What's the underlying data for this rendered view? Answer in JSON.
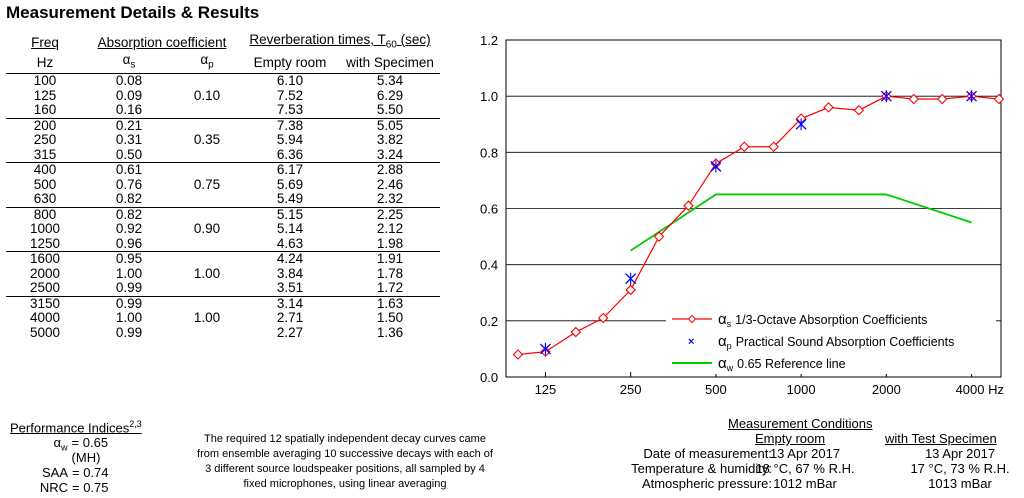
{
  "title": "Measurement Details & Results",
  "table": {
    "headers": {
      "freq": "Freq",
      "absorption": "Absorption coefficient",
      "reverb": "Reverberation times, T",
      "reverb_sub": "60",
      "reverb_unit": " (sec)",
      "hz": "Hz",
      "alpha_s": "α",
      "alpha_s_sub": "s",
      "alpha_p": "α",
      "alpha_p_sub": "p",
      "empty_room": "Empty room",
      "with_specimen": "with Specimen"
    },
    "groups": [
      {
        "alpha_p": "0.10",
        "rows": [
          {
            "freq": "100",
            "as": "0.08",
            "empty": "6.10",
            "spec": "5.34"
          },
          {
            "freq": "125",
            "as": "0.09",
            "empty": "7.52",
            "spec": "6.29"
          },
          {
            "freq": "160",
            "as": "0.16",
            "empty": "7.53",
            "spec": "5.50"
          }
        ]
      },
      {
        "alpha_p": "0.35",
        "rows": [
          {
            "freq": "200",
            "as": "0.21",
            "empty": "7.38",
            "spec": "5.05"
          },
          {
            "freq": "250",
            "as": "0.31",
            "empty": "5.94",
            "spec": "3.82"
          },
          {
            "freq": "315",
            "as": "0.50",
            "empty": "6.36",
            "spec": "3.24"
          }
        ]
      },
      {
        "alpha_p": "0.75",
        "rows": [
          {
            "freq": "400",
            "as": "0.61",
            "empty": "6.17",
            "spec": "2.88"
          },
          {
            "freq": "500",
            "as": "0.76",
            "empty": "5.69",
            "spec": "2.46"
          },
          {
            "freq": "630",
            "as": "0.82",
            "empty": "5.49",
            "spec": "2.32"
          }
        ]
      },
      {
        "alpha_p": "0.90",
        "rows": [
          {
            "freq": "800",
            "as": "0.82",
            "empty": "5.15",
            "spec": "2.25"
          },
          {
            "freq": "1000",
            "as": "0.92",
            "empty": "5.14",
            "spec": "2.12"
          },
          {
            "freq": "1250",
            "as": "0.96",
            "empty": "4.63",
            "spec": "1.98"
          }
        ]
      },
      {
        "alpha_p": "1.00",
        "rows": [
          {
            "freq": "1600",
            "as": "0.95",
            "empty": "4.24",
            "spec": "1.91"
          },
          {
            "freq": "2000",
            "as": "1.00",
            "empty": "3.84",
            "spec": "1.78"
          },
          {
            "freq": "2500",
            "as": "0.99",
            "empty": "3.51",
            "spec": "1.72"
          }
        ]
      },
      {
        "alpha_p": "1.00",
        "rows": [
          {
            "freq": "3150",
            "as": "0.99",
            "empty": "3.14",
            "spec": "1.63"
          },
          {
            "freq": "4000",
            "as": "1.00",
            "empty": "2.71",
            "spec": "1.50"
          },
          {
            "freq": "5000",
            "as": "0.99",
            "empty": "2.27",
            "spec": "1.36"
          }
        ]
      }
    ]
  },
  "performance": {
    "heading": "Performance Indices",
    "heading_sup": "2,3",
    "alpha_w_label": "α",
    "alpha_w_sub": "w",
    "alpha_w_value": "= 0.65 (MH)",
    "saa_label": "SAA",
    "saa_value": "= 0.74",
    "nrc_label": "NRC",
    "nrc_value": "= 0.75"
  },
  "note": {
    "line1": "The required 12 spatially independent decay curves came",
    "line2": "from ensemble averaging 10 successive decays with each of",
    "line3": "3 different source loudspeaker positions, all sampled by 4",
    "line4": "fixed microphones, using linear averaging"
  },
  "conditions": {
    "heading": "Measurement Conditions",
    "col_empty": "Empty room",
    "col_specimen": "with Test Specimen",
    "rows": [
      {
        "label": "Date of measurement:",
        "empty": "13 Apr 2017",
        "spec": "13 Apr 2017"
      },
      {
        "label": "Temperature & humidity:",
        "empty": "18 °C, 67 % R.H.",
        "spec": "17 °C, 73 % R.H."
      },
      {
        "label": "Atmospheric pressure:",
        "empty": "1012 mBar",
        "spec": "1013 mBar"
      }
    ]
  },
  "colors": {
    "alpha_s": "#ff0000",
    "alpha_p": "#0000ff",
    "alpha_w": "#00cc00",
    "grid": "#000000"
  },
  "chart_data": {
    "type": "line",
    "x_scale": "log (1/3-octave bands)",
    "ylim": [
      0.0,
      1.2
    ],
    "yticks": [
      "0.0",
      "0.2",
      "0.4",
      "0.6",
      "0.8",
      "1.0",
      "1.2"
    ],
    "xtick_labels": [
      "125",
      "250",
      "500",
      "1000",
      "2000",
      "4000 Hz"
    ],
    "xtick_freqs": [
      125,
      250,
      500,
      1000,
      2000,
      4000
    ],
    "series": [
      {
        "name": "α_s 1/3-Octave Absorption Coefficients",
        "x": [
          100,
          125,
          160,
          200,
          250,
          315,
          400,
          500,
          630,
          800,
          1000,
          1250,
          1600,
          2000,
          2500,
          3150,
          4000,
          5000
        ],
        "values": [
          0.08,
          0.09,
          0.16,
          0.21,
          0.31,
          0.5,
          0.61,
          0.76,
          0.82,
          0.82,
          0.92,
          0.96,
          0.95,
          1.0,
          0.99,
          0.99,
          1.0,
          0.99
        ]
      },
      {
        "name": "α_p Practical Sound Absorption Coefficients",
        "x": [
          125,
          250,
          500,
          1000,
          2000,
          4000
        ],
        "values": [
          0.1,
          0.35,
          0.75,
          0.9,
          1.0,
          1.0
        ]
      },
      {
        "name": "α_w 0.65 Reference line",
        "x": [
          250,
          500,
          1000,
          2000,
          4000
        ],
        "values": [
          0.45,
          0.65,
          0.65,
          0.65,
          0.55
        ]
      }
    ],
    "legend": {
      "s_sym": "α",
      "s_sub": "s",
      "s_text": "1/3-Octave Absorption Coefficients",
      "p_sym": "α",
      "p_sub": "p",
      "p_text": "Practical Sound Absorption Coefficients",
      "w_sym": "α",
      "w_sub": "w",
      "w_text": "0.65 Reference line",
      "placement": "bottom-right"
    }
  }
}
